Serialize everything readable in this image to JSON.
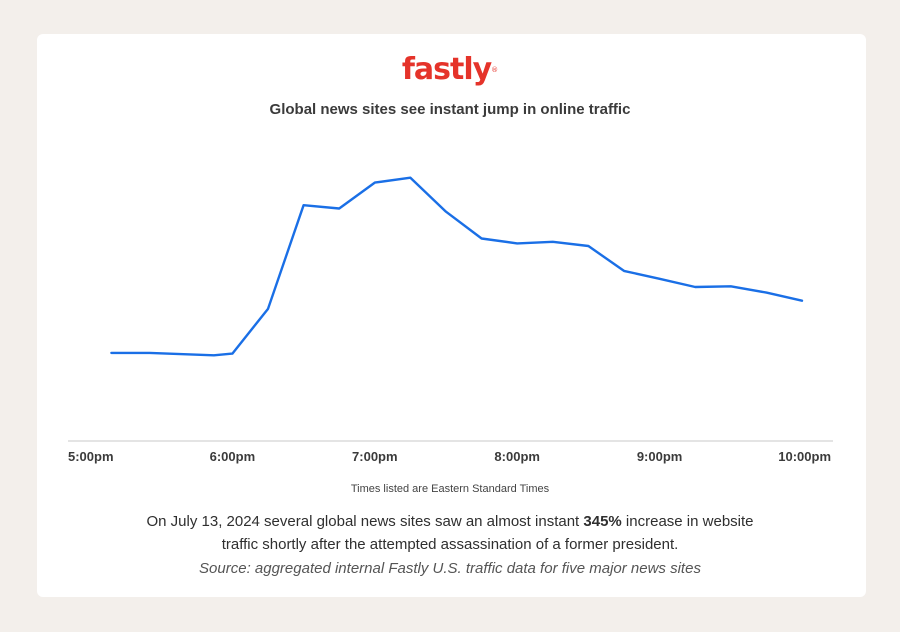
{
  "logo": {
    "text": "fastly",
    "reg_mark": "®",
    "color": "#e5332a"
  },
  "description": {
    "before": "On July 13, 2024 several global news sites saw an almost instant ",
    "highlight": "345%",
    "after": " increase in website traffic shortly after the attempted assassination of a former president."
  },
  "source": "Source: aggregated internal Fastly U.S. traffic data for five major news sites",
  "chart_data": {
    "type": "line",
    "title": "Global news sites see instant jump in online traffic",
    "xlabel": "Times listed are Eastern Standard Times",
    "ylabel": "",
    "grid": false,
    "line_color": "#1a6fe6",
    "x_ticks": [
      {
        "label": "5:00pm",
        "hour": 17
      },
      {
        "label": "6:00pm",
        "hour": 18
      },
      {
        "label": "7:00pm",
        "hour": 19
      },
      {
        "label": "8:00pm",
        "hour": 20
      },
      {
        "label": "9:00pm",
        "hour": 21
      },
      {
        "label": "10:00pm",
        "hour": 22
      }
    ],
    "x_range_hours": [
      17,
      22
    ],
    "y_range": [
      0,
      100
    ],
    "series": [
      {
        "points": [
          {
            "hour": 17.15,
            "value": 17.2
          },
          {
            "hour": 17.42,
            "value": 17.2
          },
          {
            "hour": 17.87,
            "value": 16.2
          },
          {
            "hour": 18.0,
            "value": 16.9
          },
          {
            "hour": 18.25,
            "value": 36.1
          },
          {
            "hour": 18.5,
            "value": 80.6
          },
          {
            "hour": 18.75,
            "value": 79.2
          },
          {
            "hour": 19.0,
            "value": 90.3
          },
          {
            "hour": 19.25,
            "value": 92.4
          },
          {
            "hour": 19.5,
            "value": 77.8
          },
          {
            "hour": 19.75,
            "value": 66.3
          },
          {
            "hour": 20.0,
            "value": 64.2
          },
          {
            "hour": 20.25,
            "value": 64.9
          },
          {
            "hour": 20.5,
            "value": 63.1
          },
          {
            "hour": 20.75,
            "value": 52.4
          },
          {
            "hour": 21.0,
            "value": 49.0
          },
          {
            "hour": 21.25,
            "value": 45.5
          },
          {
            "hour": 21.5,
            "value": 45.8
          },
          {
            "hour": 21.75,
            "value": 43.1
          },
          {
            "hour": 22.0,
            "value": 39.6
          }
        ]
      }
    ]
  }
}
